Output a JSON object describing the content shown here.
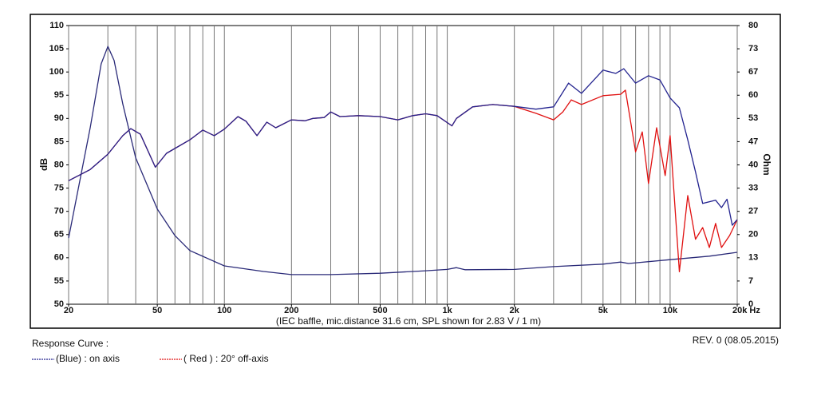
{
  "chart_data": {
    "type": "line",
    "xlabel": "(IEC baffle, mic.distance 31.6 cm, SPL shown for 2.83 V / 1 m)",
    "ylabel": "dB",
    "y2label": "Ohm",
    "legend_title": "Response Curve :",
    "revision": "REV. 0 (08.05.2015)",
    "xscale": "log",
    "xlim": [
      20,
      20000
    ],
    "xticks": [
      20,
      50,
      100,
      200,
      500,
      {
        "value": 1000,
        "label": "1k"
      },
      {
        "value": 2000,
        "label": "2k"
      },
      {
        "value": 5000,
        "label": "5k"
      },
      {
        "value": 10000,
        "label": "10k"
      },
      {
        "value": 20000,
        "label": "20k Hz"
      }
    ],
    "xgrid": [
      20,
      30,
      40,
      50,
      60,
      70,
      80,
      90,
      100,
      200,
      300,
      400,
      500,
      600,
      700,
      800,
      900,
      1000,
      2000,
      3000,
      4000,
      5000,
      6000,
      7000,
      8000,
      9000,
      10000,
      20000
    ],
    "ylim": [
      50,
      110
    ],
    "yticks": [
      50,
      55,
      60,
      65,
      70,
      75,
      80,
      85,
      90,
      95,
      100,
      105,
      110
    ],
    "y2lim": [
      0,
      80
    ],
    "y2ticks": [
      0,
      {
        "value": 6.667,
        "label": "7"
      },
      {
        "value": 13.333,
        "label": "13"
      },
      20,
      {
        "value": 26.667,
        "label": "27"
      },
      {
        "value": 33.333,
        "label": "33"
      },
      40,
      {
        "value": 46.667,
        "label": "47"
      },
      {
        "value": 53.333,
        "label": "53"
      },
      60,
      {
        "value": 66.667,
        "label": "67"
      },
      {
        "value": 73.333,
        "label": "73"
      },
      80
    ],
    "series": [
      {
        "name": "(Blue)  : on axis",
        "color": "#23238f",
        "x": [
          20,
          25,
          30,
          35,
          38,
          42,
          49,
          55,
          70,
          80,
          90,
          100,
          115,
          125,
          140,
          155,
          170,
          200,
          230,
          250,
          280,
          300,
          330,
          400,
          500,
          600,
          700,
          800,
          900,
          1050,
          1100,
          1300,
          1600,
          2000,
          2500,
          3000,
          3500,
          4000,
          5000,
          5700,
          6200,
          7000,
          8000,
          9000,
          10000,
          11000,
          12000,
          13000,
          14000,
          16000,
          17000,
          18000,
          19000,
          20000
        ],
        "values": [
          76.6,
          79,
          82.3,
          86.3,
          87.8,
          86.6,
          79.5,
          82.5,
          85.4,
          87.5,
          86.3,
          87.7,
          90.4,
          89.4,
          86.3,
          89.2,
          88,
          89.7,
          89.5,
          90,
          90.2,
          91.4,
          90.4,
          90.6,
          90.4,
          89.7,
          90.6,
          91,
          90.6,
          88.4,
          90,
          92.5,
          93,
          92.6,
          92,
          92.5,
          97.6,
          95.4,
          100.4,
          99.7,
          100.7,
          97.6,
          99.2,
          98.3,
          94.4,
          92.3,
          85.4,
          78.5,
          71.7,
          72.4,
          70.8,
          72.6,
          67,
          68.2
        ]
      },
      {
        "name": "( Red ) : 20° off-axis",
        "color": "#e01010",
        "x": [
          20,
          25,
          30,
          35,
          38,
          42,
          49,
          55,
          70,
          80,
          90,
          100,
          115,
          125,
          140,
          155,
          170,
          200,
          230,
          250,
          280,
          300,
          330,
          400,
          500,
          600,
          700,
          800,
          900,
          1050,
          1100,
          1300,
          1600,
          2000,
          2500,
          3000,
          3300,
          3600,
          4000,
          5000,
          6000,
          6300,
          7000,
          7500,
          8000,
          8700,
          9500,
          10000,
          11000,
          12000,
          13000,
          14000,
          15000,
          16000,
          17000,
          18500,
          20000
        ],
        "values": [
          76.6,
          79,
          82.3,
          86.3,
          87.8,
          86.6,
          79.5,
          82.5,
          85.4,
          87.5,
          86.3,
          87.7,
          90.4,
          89.4,
          86.3,
          89.2,
          88,
          89.7,
          89.5,
          90,
          90.2,
          91.4,
          90.4,
          90.6,
          90.4,
          89.7,
          90.6,
          91,
          90.6,
          88.4,
          90,
          92.5,
          93,
          92.6,
          91.1,
          89.7,
          91.4,
          94,
          93,
          94.9,
          95.2,
          96.1,
          82.8,
          87.1,
          76,
          88,
          77.7,
          86.3,
          57,
          73.4,
          64,
          66.5,
          62.2,
          67.4,
          62.2,
          64.8,
          68.2
        ]
      },
      {
        "color": "#2a2a78",
        "axis": "y2",
        "x": [
          20,
          25,
          28,
          30,
          32,
          35,
          40,
          50,
          60,
          70,
          100,
          150,
          200,
          300,
          500,
          800,
          1000,
          1100,
          1200,
          2000,
          3000,
          5000,
          6000,
          6500,
          10000,
          15000,
          20000
        ],
        "values": [
          19,
          50.7,
          69,
          74,
          70,
          57.5,
          42,
          27.3,
          19.7,
          15.4,
          11,
          9.4,
          8.5,
          8.5,
          8.9,
          9.6,
          10,
          10.5,
          9.9,
          10,
          10.8,
          11.5,
          12.1,
          11.7,
          12.8,
          13.8,
          14.9
        ]
      }
    ]
  }
}
